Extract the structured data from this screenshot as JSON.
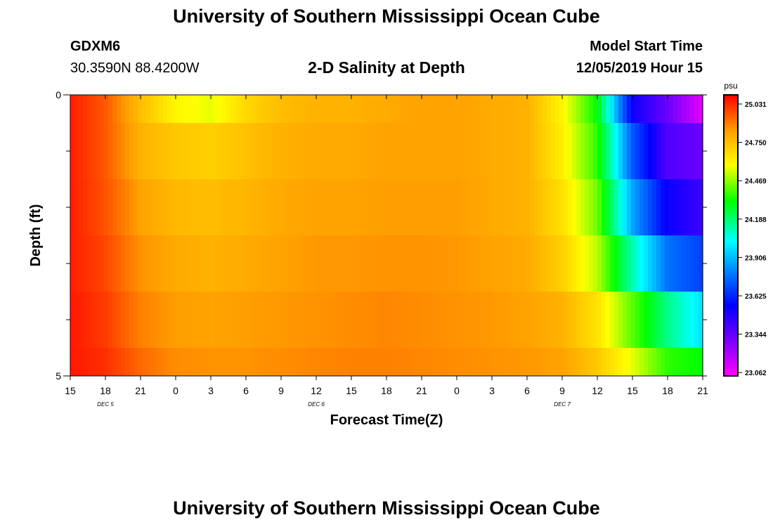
{
  "header": {
    "title": "University of Southern Mississippi Ocean Cube",
    "station_id": "GDXM6",
    "coordinates": "30.3590N 88.4200W",
    "plot_title": "2-D Salinity at Depth",
    "model_start_label": "Model Start Time",
    "model_start_value": "12/05/2019 Hour 15"
  },
  "footer": {
    "title": "University of Southern Mississippi Ocean Cube"
  },
  "chart_data": {
    "type": "heatmap",
    "title": "2-D Salinity at Depth",
    "xlabel": "Forecast Time(Z)",
    "ylabel": "Depth (ft)",
    "ylim": [
      0,
      5
    ],
    "y_tick_labels": [
      "0",
      "5"
    ],
    "x_tick_labels": [
      "15",
      "18",
      "21",
      "0",
      "3",
      "6",
      "9",
      "12",
      "15",
      "18",
      "21",
      "0",
      "3",
      "6",
      "9",
      "12",
      "15",
      "18",
      "21"
    ],
    "date_labels": [
      {
        "label": "DEC 5",
        "after_tick": 1
      },
      {
        "label": "DEC 6",
        "after_tick": 7
      },
      {
        "label": "DEC 7",
        "after_tick": 14
      }
    ],
    "colorbar": {
      "unit": "psu",
      "ticks": [
        25.031,
        24.75,
        24.469,
        24.188,
        23.906,
        23.625,
        23.344,
        23.062
      ],
      "range": [
        23.0,
        25.1
      ]
    },
    "depth_layers": [
      0.25,
      1.0,
      2.0,
      3.0,
      4.0,
      4.75
    ],
    "layer_bounds": [
      0,
      0.5,
      1.5,
      2.5,
      3.5,
      4.5,
      5
    ],
    "time_hours": [
      0,
      3,
      6,
      9,
      12,
      15,
      18,
      21,
      24,
      27,
      30,
      33,
      36,
      39,
      42,
      45,
      48,
      51,
      54
    ],
    "salinity_rows": [
      [
        25.05,
        24.95,
        24.75,
        24.6,
        24.55,
        24.68,
        24.75,
        24.78,
        24.78,
        24.8,
        24.82,
        24.82,
        24.8,
        24.78,
        24.6,
        24.3,
        23.5,
        23.3,
        23.05
      ],
      [
        25.05,
        24.95,
        24.78,
        24.72,
        24.7,
        24.74,
        24.78,
        24.8,
        24.8,
        24.82,
        24.82,
        24.82,
        24.8,
        24.78,
        24.62,
        24.35,
        23.7,
        23.35,
        23.3
      ],
      [
        25.05,
        24.96,
        24.82,
        24.76,
        24.75,
        24.77,
        24.8,
        24.82,
        24.82,
        24.83,
        24.83,
        24.83,
        24.8,
        24.78,
        24.66,
        24.42,
        23.85,
        23.5,
        23.4
      ],
      [
        25.05,
        24.98,
        24.85,
        24.8,
        24.78,
        24.8,
        24.82,
        24.84,
        24.84,
        24.85,
        24.85,
        24.84,
        24.82,
        24.8,
        24.7,
        24.5,
        24.1,
        23.75,
        23.65
      ],
      [
        25.06,
        25.0,
        24.88,
        24.83,
        24.82,
        24.83,
        24.84,
        24.85,
        24.86,
        24.87,
        24.86,
        24.85,
        24.84,
        24.82,
        24.78,
        24.65,
        24.4,
        24.15,
        23.95
      ],
      [
        25.06,
        25.02,
        24.92,
        24.86,
        24.85,
        24.85,
        24.86,
        24.87,
        24.88,
        24.88,
        24.87,
        24.86,
        24.85,
        24.84,
        24.82,
        24.72,
        24.55,
        24.35,
        24.3
      ]
    ]
  }
}
